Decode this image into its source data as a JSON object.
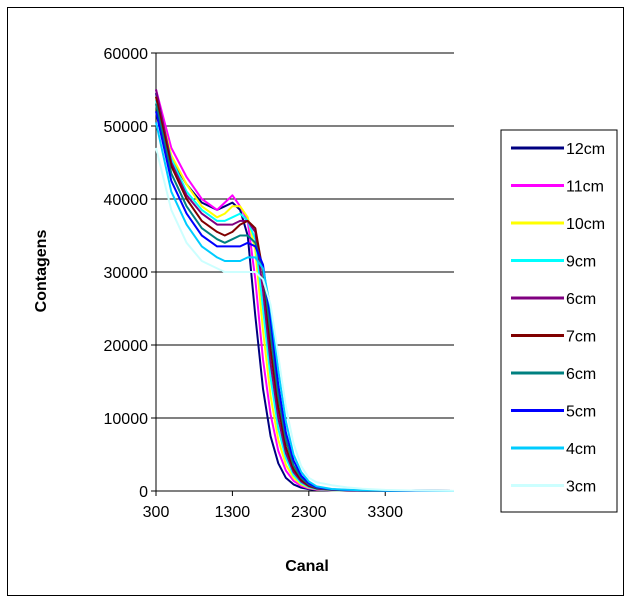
{
  "chart_data": {
    "type": "line",
    "title": "",
    "xlabel": "Canal",
    "ylabel": "Contagens",
    "xlim": [
      300,
      4200
    ],
    "ylim": [
      0,
      60000
    ],
    "x_ticks": [
      "300",
      "1300",
      "2300",
      "3300"
    ],
    "y_ticks": [
      "0",
      "10000",
      "20000",
      "30000",
      "40000",
      "50000",
      "60000"
    ],
    "grid": "horizontal major gridlines",
    "legend_position": "right",
    "plot_background": "#ffffff",
    "x": [
      300,
      500,
      700,
      900,
      1100,
      1200,
      1300,
      1400,
      1500,
      1600,
      1700,
      1800,
      1900,
      2000,
      2100,
      2200,
      2300,
      2400,
      2600,
      2800,
      3000,
      3300,
      3700,
      4200
    ],
    "series": [
      {
        "name": "12cm",
        "color": "#000080",
        "values": [
          54500,
          45500,
          42000,
          39500,
          38500,
          39000,
          39500,
          38500,
          35000,
          24000,
          14000,
          7500,
          3800,
          1800,
          900,
          450,
          250,
          150,
          80,
          50,
          30,
          20,
          10,
          5
        ]
      },
      {
        "name": "11cm",
        "color": "#ff00ff",
        "values": [
          55000,
          47000,
          43000,
          40000,
          38500,
          39500,
          40500,
          39000,
          37000,
          29000,
          18000,
          10500,
          5500,
          2800,
          1400,
          700,
          350,
          180,
          90,
          60,
          40,
          20,
          10,
          5
        ]
      },
      {
        "name": "10cm",
        "color": "#ffff00",
        "values": [
          54000,
          46000,
          42000,
          39000,
          37500,
          38000,
          39000,
          39000,
          37500,
          33000,
          22000,
          13000,
          7000,
          3600,
          1800,
          900,
          450,
          230,
          110,
          70,
          40,
          20,
          10,
          5
        ]
      },
      {
        "name": "9cm",
        "color": "#00ffff",
        "values": [
          53500,
          45500,
          41000,
          38500,
          37000,
          37000,
          37500,
          38000,
          37000,
          34500,
          25000,
          15500,
          8500,
          4500,
          2200,
          1100,
          550,
          280,
          130,
          80,
          50,
          30,
          10,
          5
        ]
      },
      {
        "name": "6cm",
        "color": "#800080",
        "values": [
          55000,
          45000,
          40500,
          38000,
          36500,
          36500,
          36500,
          37000,
          37000,
          35500,
          27500,
          17500,
          10000,
          5200,
          2600,
          1300,
          650,
          330,
          150,
          90,
          50,
          30,
          15,
          5
        ]
      },
      {
        "name": "7cm",
        "color": "#800000",
        "values": [
          54000,
          44500,
          40000,
          37000,
          35500,
          35000,
          35500,
          36500,
          37000,
          36000,
          30000,
          19500,
          11500,
          6000,
          3000,
          1500,
          750,
          380,
          170,
          100,
          60,
          35,
          15,
          5
        ]
      },
      {
        "name": "6cm",
        "color": "#008080",
        "values": [
          53000,
          43500,
          39000,
          36000,
          34500,
          34000,
          34500,
          35000,
          35000,
          34000,
          30500,
          21500,
          13000,
          7000,
          3500,
          1800,
          900,
          450,
          200,
          120,
          70,
          40,
          20,
          5
        ]
      },
      {
        "name": "5cm",
        "color": "#0000ff",
        "values": [
          52000,
          42500,
          38000,
          35000,
          33500,
          33500,
          33500,
          33500,
          34000,
          33500,
          31000,
          23500,
          14500,
          8000,
          4200,
          2100,
          1050,
          520,
          230,
          140,
          80,
          45,
          20,
          5
        ]
      },
      {
        "name": "4cm",
        "color": "#00ccff",
        "values": [
          50500,
          41000,
          36500,
          33500,
          32000,
          31500,
          31500,
          31500,
          32000,
          32000,
          30500,
          25000,
          16500,
          9500,
          5000,
          2600,
          1300,
          650,
          280,
          170,
          100,
          55,
          25,
          5
        ]
      },
      {
        "name": "3cm",
        "color": "#ccffff",
        "values": [
          47000,
          38500,
          34000,
          31500,
          30500,
          30000,
          30000,
          30000,
          30000,
          30000,
          29000,
          25500,
          18500,
          11500,
          6500,
          3400,
          1800,
          1200,
          800,
          500,
          300,
          150,
          60,
          10
        ]
      }
    ]
  }
}
